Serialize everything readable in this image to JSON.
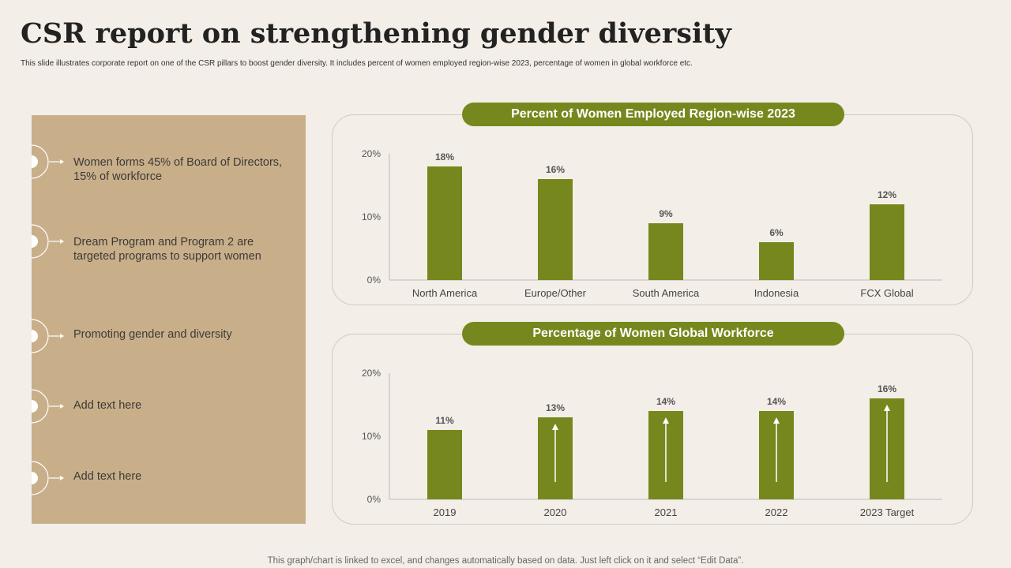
{
  "title": "CSR report on strengthening gender diversity",
  "subtitle": "This slide illustrates corporate report on one of the CSR pillars to boost gender diversity. It includes percent of women employed region-wise 2023, percentage of women in global  workforce etc.",
  "points": [
    "Women forms 45% of Board of Directors, 15% of workforce",
    "Dream Program and Program 2 are targeted programs to support women",
    "Promoting gender and diversity",
    "Add text here",
    "Add text here"
  ],
  "colors": {
    "bar": "#76881d",
    "panel": "#c8af8a",
    "background": "#f3eee7"
  },
  "chart_data": [
    {
      "type": "bar",
      "title": "Percent of Women Employed Region-wise 2023",
      "categories": [
        "North America",
        "Europe/Other",
        "South America",
        "Indonesia",
        "FCX Global"
      ],
      "values": [
        18,
        16,
        9,
        6,
        12
      ],
      "value_labels": [
        "18%",
        "16%",
        "9%",
        "6%",
        "12%"
      ],
      "yticks": [
        "0%",
        "10%",
        "20%"
      ],
      "ylim": [
        0,
        20
      ],
      "xlabel": "",
      "ylabel": ""
    },
    {
      "type": "bar",
      "title": "Percentage of Women Global Workforce",
      "categories": [
        "2019",
        "2020",
        "2021",
        "2022",
        "2023 Target"
      ],
      "values": [
        11,
        13,
        14,
        14,
        16
      ],
      "value_labels": [
        "11%",
        "13%",
        "14%",
        "14%",
        "16%"
      ],
      "yticks": [
        "0%",
        "10%",
        "20%"
      ],
      "ylim": [
        0,
        20
      ],
      "arrows": [
        false,
        true,
        true,
        true,
        true
      ],
      "xlabel": "",
      "ylabel": ""
    }
  ],
  "footer": "This graph/chart is linked to excel,  and changes automatically based on data. Just left click on it and select “Edit Data”."
}
